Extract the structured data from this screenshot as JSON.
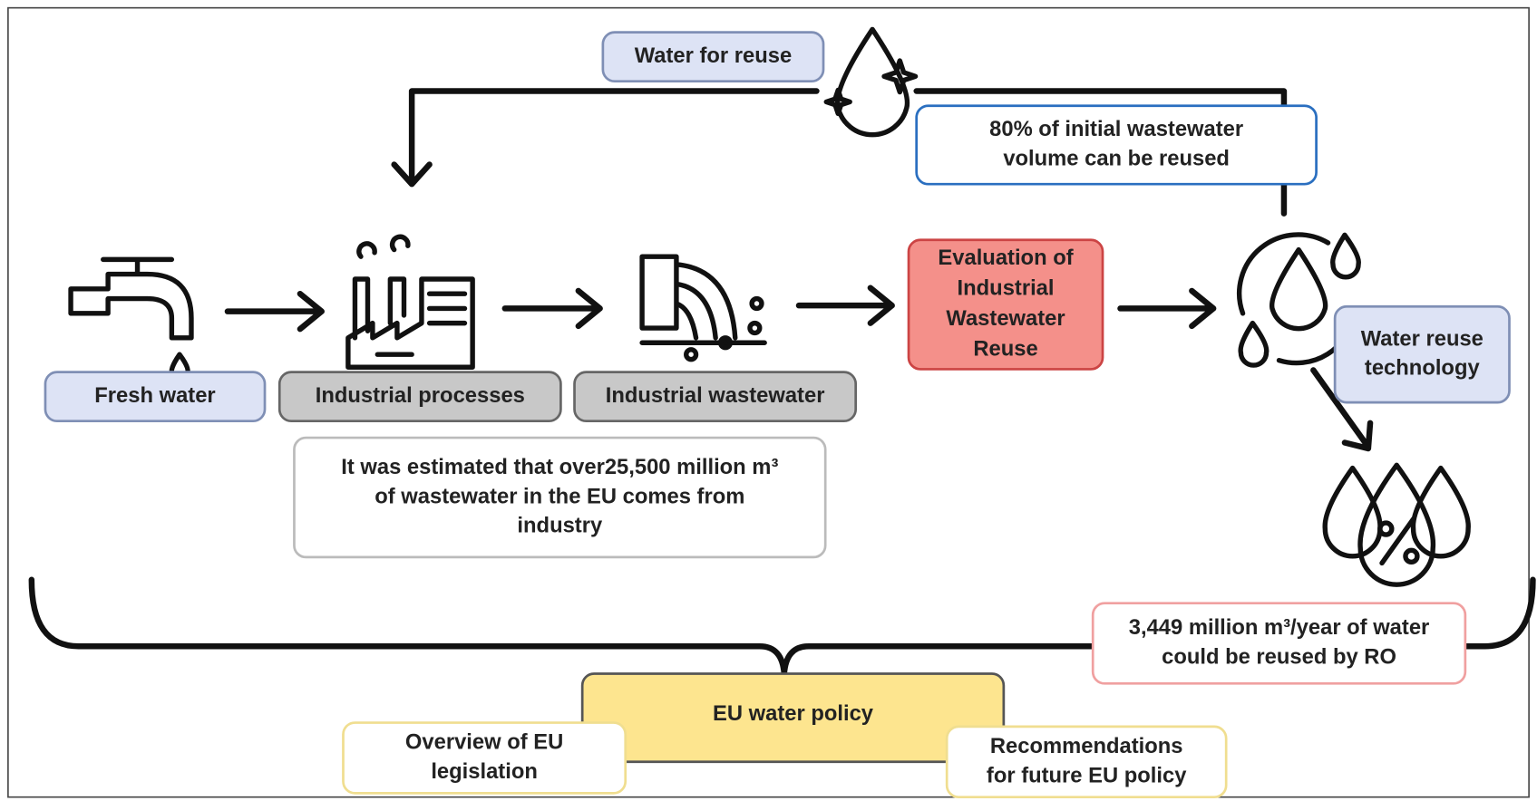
{
  "boxes": [
    {
      "lines": [
        "Water for reuse"
      ]
    },
    {
      "lines": [
        "80% of initial wastewater",
        "volume can be reused"
      ]
    },
    {
      "lines": [
        "Fresh water"
      ]
    },
    {
      "lines": [
        "Industrial processes"
      ]
    },
    {
      "lines": [
        "Industrial wastewater"
      ]
    },
    {
      "lines": [
        "Evaluation of",
        "Industrial",
        "Wastewater",
        "Reuse"
      ]
    },
    {
      "lines": [
        "Water reuse",
        "technology"
      ]
    },
    {
      "lines": [
        "It was estimated that over25,500 million m³",
        "of wastewater in the EU comes from",
        "industry"
      ]
    },
    {
      "lines": [
        "3,449 million m³/year of water",
        "could be reused by RO"
      ]
    },
    {
      "lines": [
        "EU water policy"
      ]
    },
    {
      "lines": [
        "Overview of EU",
        "legislation"
      ]
    },
    {
      "lines": [
        "Recommendations",
        "for future EU policy"
      ]
    }
  ]
}
